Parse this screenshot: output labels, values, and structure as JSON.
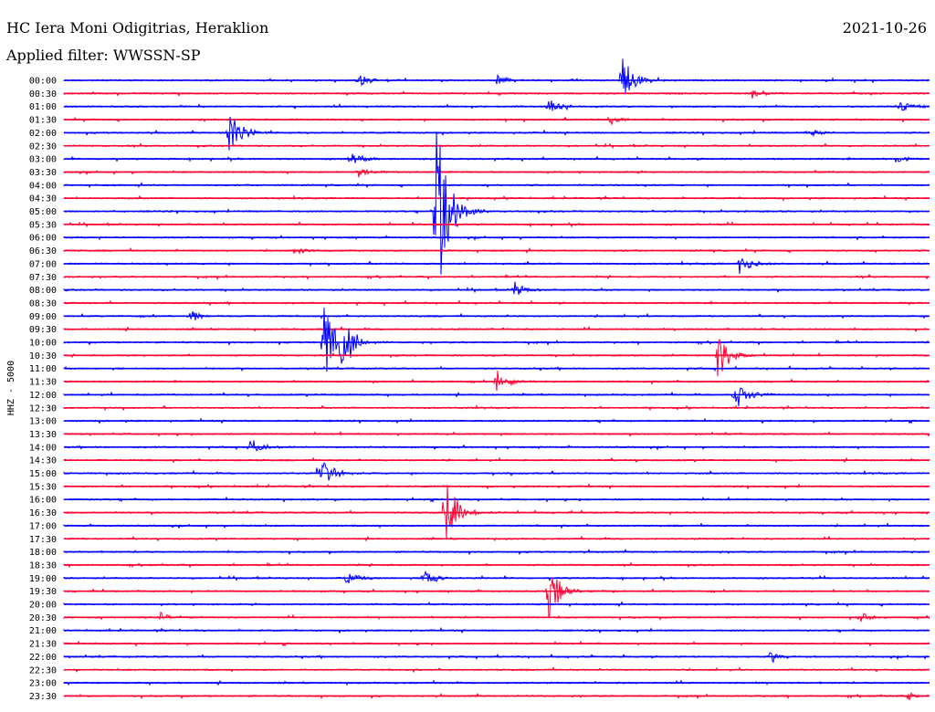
{
  "header": {
    "station": "HC Iera Moni Odigitrias, Heraklion",
    "date": "2021-10-26",
    "filter": "Applied filter: WWSSN-SP"
  },
  "colors": {
    "blue": "#0000ff",
    "red": "#ff0033"
  },
  "chart_data": {
    "type": "line",
    "title": "HC Iera Moni Odigitrias, Heraklion",
    "subtitle": "Applied filter: WWSSN-SP",
    "ylabel": "HHZ - 5000",
    "row_labels": [
      "00:00",
      "00:30",
      "01:00",
      "01:30",
      "02:00",
      "02:30",
      "03:00",
      "03:30",
      "04:00",
      "04:30",
      "05:00",
      "05:30",
      "06:00",
      "06:30",
      "07:00",
      "07:30",
      "08:00",
      "08:30",
      "09:00",
      "09:30",
      "10:00",
      "10:30",
      "11:00",
      "11:30",
      "12:00",
      "12:30",
      "13:00",
      "13:30",
      "14:00",
      "14:30",
      "15:00",
      "15:30",
      "16:00",
      "16:30",
      "17:00",
      "17:30",
      "18:00",
      "18:30",
      "19:00",
      "19:30",
      "20:00",
      "20:30",
      "21:00",
      "21:30",
      "22:00",
      "22:30",
      "23:00",
      "23:30"
    ],
    "row_colors": [
      "blue",
      "red"
    ],
    "events": [
      {
        "row": "00:00",
        "t": 0.34,
        "amp": 8
      },
      {
        "row": "00:00",
        "t": 0.5,
        "amp": 6
      },
      {
        "row": "00:00",
        "t": 0.645,
        "amp": 28
      },
      {
        "row": "00:30",
        "t": 0.795,
        "amp": 6
      },
      {
        "row": "01:00",
        "t": 0.56,
        "amp": 8
      },
      {
        "row": "01:00",
        "t": 0.965,
        "amp": 6
      },
      {
        "row": "01:30",
        "t": 0.63,
        "amp": 6
      },
      {
        "row": "02:00",
        "t": 0.19,
        "amp": 24
      },
      {
        "row": "02:00",
        "t": 0.86,
        "amp": 5
      },
      {
        "row": "03:00",
        "t": 0.33,
        "amp": 8
      },
      {
        "row": "03:00",
        "t": 0.96,
        "amp": 5
      },
      {
        "row": "03:30",
        "t": 0.34,
        "amp": 6
      },
      {
        "row": "05:00",
        "t": 0.43,
        "amp": 110
      },
      {
        "row": "06:30",
        "t": 0.265,
        "amp": 6
      },
      {
        "row": "07:00",
        "t": 0.78,
        "amp": 12
      },
      {
        "row": "08:00",
        "t": 0.52,
        "amp": 10
      },
      {
        "row": "09:00",
        "t": 0.145,
        "amp": 8
      },
      {
        "row": "10:00",
        "t": 0.3,
        "amp": 45
      },
      {
        "row": "10:00",
        "t": 0.32,
        "amp": 30
      },
      {
        "row": "10:30",
        "t": 0.755,
        "amp": 28
      },
      {
        "row": "11:30",
        "t": 0.5,
        "amp": 14
      },
      {
        "row": "12:00",
        "t": 0.775,
        "amp": 18
      },
      {
        "row": "14:00",
        "t": 0.215,
        "amp": 10
      },
      {
        "row": "15:00",
        "t": 0.295,
        "amp": 20
      },
      {
        "row": "16:30",
        "t": 0.44,
        "amp": 40
      },
      {
        "row": "19:00",
        "t": 0.325,
        "amp": 8
      },
      {
        "row": "19:00",
        "t": 0.415,
        "amp": 10
      },
      {
        "row": "19:30",
        "t": 0.56,
        "amp": 30
      },
      {
        "row": "20:30",
        "t": 0.11,
        "amp": 6
      },
      {
        "row": "20:30",
        "t": 0.92,
        "amp": 6
      },
      {
        "row": "22:00",
        "t": 0.815,
        "amp": 6
      },
      {
        "row": "23:30",
        "t": 0.975,
        "amp": 5
      }
    ],
    "grid": false,
    "legend": "none"
  }
}
